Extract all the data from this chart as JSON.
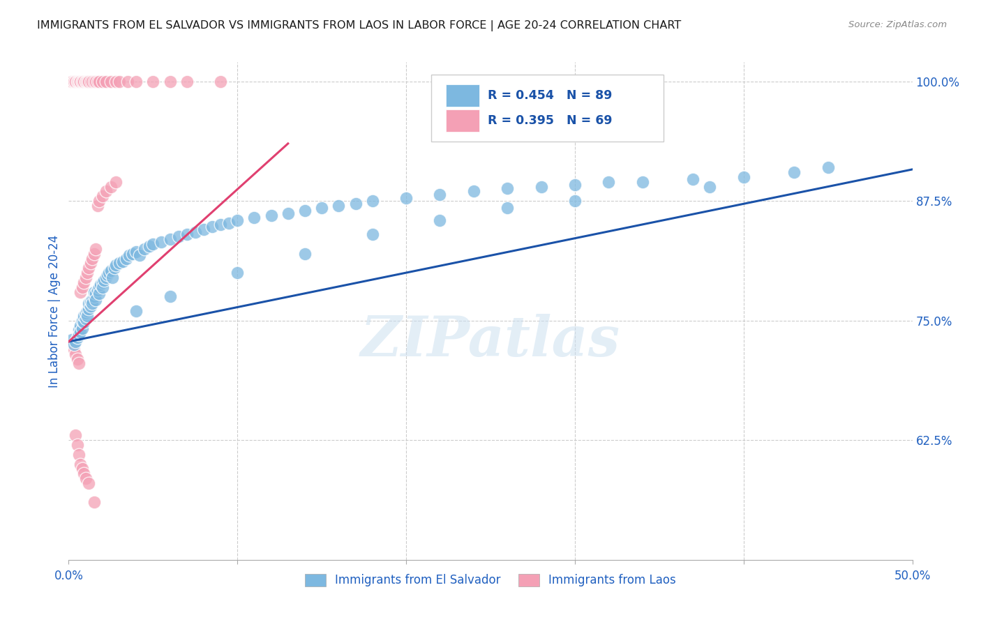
{
  "title": "IMMIGRANTS FROM EL SALVADOR VS IMMIGRANTS FROM LAOS IN LABOR FORCE | AGE 20-24 CORRELATION CHART",
  "source": "Source: ZipAtlas.com",
  "ylabel": "In Labor Force | Age 20-24",
  "xlim": [
    0.0,
    0.5
  ],
  "ylim": [
    0.5,
    1.02
  ],
  "xtick_positions": [
    0.0,
    0.1,
    0.2,
    0.3,
    0.4,
    0.5
  ],
  "xticklabels": [
    "0.0%",
    "",
    "",
    "",
    "",
    "50.0%"
  ],
  "yticks_right": [
    0.625,
    0.75,
    0.875,
    1.0
  ],
  "ytick_labels_right": [
    "62.5%",
    "75.0%",
    "87.5%",
    "100.0%"
  ],
  "blue_color": "#7db8e0",
  "pink_color": "#f4a0b5",
  "blue_line_color": "#1a52a8",
  "pink_line_color": "#e04070",
  "legend_text_color": "#1a52a8",
  "legend_R_blue": "R = 0.454",
  "legend_N_blue": "N = 89",
  "legend_R_pink": "R = 0.395",
  "legend_N_pink": "N = 69",
  "legend_label_blue": "Immigrants from El Salvador",
  "legend_label_pink": "Immigrants from Laos",
  "watermark": "ZIPatlas",
  "title_color": "#1a1a1a",
  "source_color": "#888888",
  "axis_label_color": "#2060c0",
  "grid_color": "#cccccc",
  "blue_scatter_x": [
    0.002,
    0.003,
    0.004,
    0.005,
    0.006,
    0.006,
    0.007,
    0.007,
    0.008,
    0.008,
    0.009,
    0.009,
    0.01,
    0.01,
    0.011,
    0.011,
    0.012,
    0.012,
    0.013,
    0.013,
    0.014,
    0.014,
    0.015,
    0.015,
    0.016,
    0.016,
    0.017,
    0.018,
    0.018,
    0.019,
    0.02,
    0.02,
    0.021,
    0.022,
    0.023,
    0.024,
    0.025,
    0.026,
    0.027,
    0.028,
    0.03,
    0.032,
    0.034,
    0.036,
    0.038,
    0.04,
    0.042,
    0.045,
    0.048,
    0.05,
    0.055,
    0.06,
    0.065,
    0.07,
    0.075,
    0.08,
    0.085,
    0.09,
    0.095,
    0.1,
    0.11,
    0.12,
    0.13,
    0.14,
    0.15,
    0.16,
    0.17,
    0.18,
    0.2,
    0.22,
    0.24,
    0.26,
    0.28,
    0.3,
    0.32,
    0.34,
    0.37,
    0.4,
    0.43,
    0.45,
    0.04,
    0.06,
    0.1,
    0.14,
    0.18,
    0.22,
    0.26,
    0.3,
    0.38
  ],
  "blue_scatter_y": [
    0.73,
    0.725,
    0.728,
    0.732,
    0.74,
    0.735,
    0.745,
    0.738,
    0.742,
    0.75,
    0.748,
    0.755,
    0.752,
    0.758,
    0.76,
    0.755,
    0.762,
    0.768,
    0.765,
    0.77,
    0.772,
    0.768,
    0.775,
    0.78,
    0.778,
    0.772,
    0.782,
    0.785,
    0.778,
    0.788,
    0.79,
    0.785,
    0.792,
    0.795,
    0.798,
    0.8,
    0.802,
    0.795,
    0.805,
    0.808,
    0.81,
    0.812,
    0.815,
    0.818,
    0.82,
    0.822,
    0.818,
    0.825,
    0.828,
    0.83,
    0.832,
    0.835,
    0.838,
    0.84,
    0.842,
    0.845,
    0.848,
    0.85,
    0.852,
    0.855,
    0.858,
    0.86,
    0.862,
    0.865,
    0.868,
    0.87,
    0.872,
    0.875,
    0.878,
    0.882,
    0.885,
    0.888,
    0.89,
    0.892,
    0.895,
    0.895,
    0.898,
    0.9,
    0.905,
    0.91,
    0.76,
    0.775,
    0.8,
    0.82,
    0.84,
    0.855,
    0.868,
    0.875,
    0.89
  ],
  "pink_scatter_x": [
    0.002,
    0.003,
    0.003,
    0.004,
    0.004,
    0.005,
    0.005,
    0.006,
    0.006,
    0.007,
    0.007,
    0.007,
    0.008,
    0.008,
    0.008,
    0.009,
    0.009,
    0.01,
    0.01,
    0.011,
    0.011,
    0.012,
    0.012,
    0.013,
    0.014,
    0.015,
    0.016,
    0.017,
    0.018,
    0.02,
    0.022,
    0.025,
    0.028,
    0.03,
    0.035,
    0.04,
    0.05,
    0.06,
    0.07,
    0.09,
    0.003,
    0.004,
    0.005,
    0.006,
    0.007,
    0.008,
    0.009,
    0.01,
    0.011,
    0.012,
    0.013,
    0.014,
    0.015,
    0.016,
    0.017,
    0.018,
    0.02,
    0.022,
    0.025,
    0.028,
    0.004,
    0.005,
    0.006,
    0.007,
    0.008,
    0.009,
    0.01,
    0.012,
    0.015
  ],
  "pink_scatter_y": [
    1.0,
    1.0,
    1.0,
    1.0,
    1.0,
    1.0,
    1.0,
    1.0,
    1.0,
    1.0,
    1.0,
    1.0,
    1.0,
    1.0,
    1.0,
    1.0,
    1.0,
    1.0,
    1.0,
    1.0,
    1.0,
    1.0,
    1.0,
    1.0,
    1.0,
    1.0,
    1.0,
    1.0,
    1.0,
    1.0,
    1.0,
    1.0,
    1.0,
    1.0,
    1.0,
    1.0,
    1.0,
    1.0,
    1.0,
    1.0,
    0.72,
    0.715,
    0.71,
    0.705,
    0.78,
    0.785,
    0.79,
    0.795,
    0.8,
    0.805,
    0.81,
    0.815,
    0.82,
    0.825,
    0.87,
    0.875,
    0.88,
    0.885,
    0.89,
    0.895,
    0.63,
    0.62,
    0.61,
    0.6,
    0.595,
    0.59,
    0.585,
    0.58,
    0.56
  ],
  "blue_trend_x": [
    0.0,
    0.5
  ],
  "blue_trend_y": [
    0.728,
    0.908
  ],
  "pink_trend_x": [
    0.0,
    0.13
  ],
  "pink_trend_y": [
    0.728,
    0.935
  ]
}
